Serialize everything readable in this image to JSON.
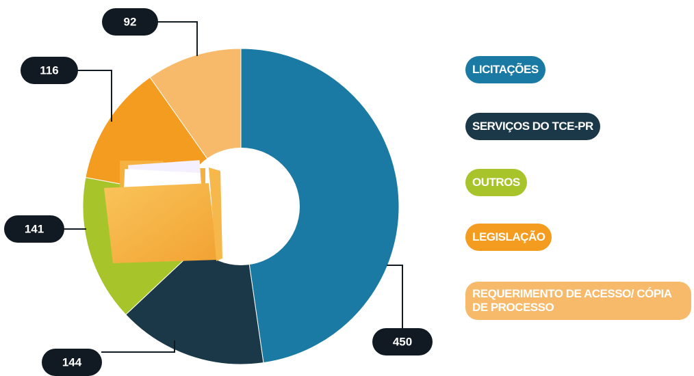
{
  "chart_data": {
    "type": "pie",
    "categories": [
      "LICITAÇÕES",
      "SERVIÇOS DO TCE-PR",
      "OUTROS",
      "LEGISLAÇÃO",
      "REQUERIMENTO DE ACESSO/ CÓPIA DE PROCESSO"
    ],
    "values": [
      450,
      144,
      141,
      116,
      92
    ],
    "colors": [
      "#1a7aa3",
      "#1b3849",
      "#a7c52b",
      "#f39c1f",
      "#f7ba6b"
    ]
  }
}
